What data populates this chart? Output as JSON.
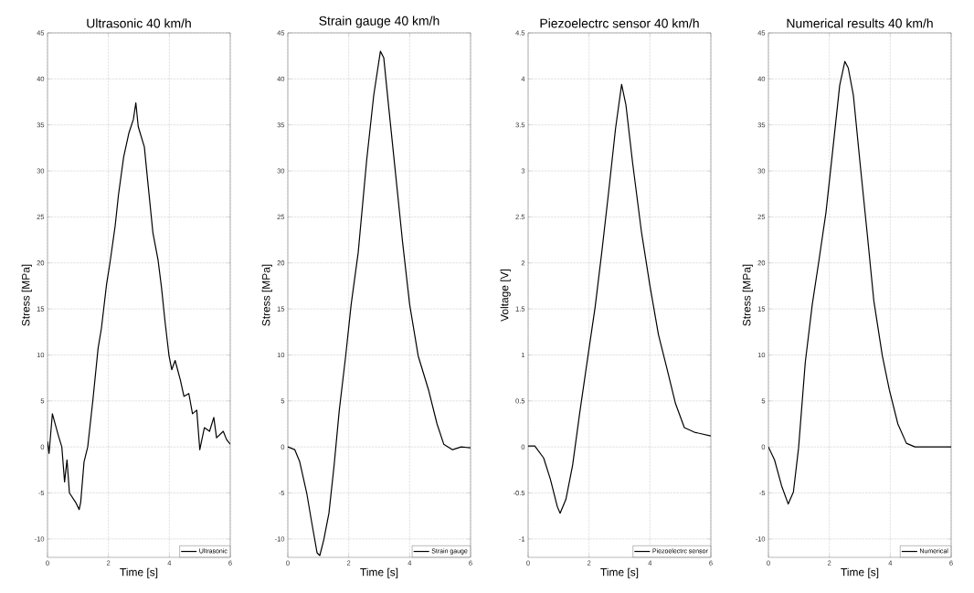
{
  "chart_data": [
    {
      "type": "line",
      "title": "Ultrasonic 40 km/h",
      "xlabel": "Time [s]",
      "ylabel": "Stress [MPa]",
      "xlim": [
        0,
        6
      ],
      "ylim": [
        -12,
        45
      ],
      "xticks": [
        0,
        2,
        4,
        6
      ],
      "yticks": [
        -10,
        -5,
        0,
        5,
        10,
        15,
        20,
        25,
        30,
        35,
        40,
        45
      ],
      "grid": true,
      "legend": "bottom right",
      "series": [
        {
          "name": "Ultrasonic",
          "color": "#000000",
          "x": [
            0,
            0.05,
            0.16,
            0.36,
            0.47,
            0.56,
            0.64,
            0.72,
            0.92,
            1.04,
            1.09,
            1.2,
            1.32,
            1.49,
            1.66,
            1.77,
            1.94,
            2.05,
            2.22,
            2.33,
            2.5,
            2.67,
            2.82,
            2.9,
            2.98,
            3.18,
            3.29,
            3.46,
            3.63,
            3.74,
            3.86,
            3.99,
            4.08,
            4.19,
            4.36,
            4.48,
            4.64,
            4.76,
            4.9,
            5.0,
            5.15,
            5.32,
            5.46,
            5.55,
            5.77,
            5.88,
            6.0
          ],
          "values": [
            0.6,
            -0.7,
            3.6,
            1.2,
            0,
            -3.8,
            -1.4,
            -5,
            -6,
            -6.8,
            -6,
            -1.6,
            0,
            5.1,
            10.7,
            12.9,
            17.7,
            20,
            24,
            27.4,
            31.5,
            34.1,
            35.6,
            37.4,
            34.8,
            32.6,
            28.9,
            23.3,
            20.3,
            17.4,
            13.6,
            9.9,
            8.4,
            9.4,
            7.3,
            5.5,
            5.8,
            3.6,
            4,
            -0.3,
            2.1,
            1.7,
            3.2,
            1,
            1.7,
            0.8,
            0.3
          ]
        }
      ]
    },
    {
      "type": "line",
      "title": "Strain gauge 40 km/h",
      "xlabel": "Time [s]",
      "ylabel": "Stress [MPa]",
      "xlim": [
        0,
        6
      ],
      "ylim": [
        -12,
        45
      ],
      "xticks": [
        0,
        2,
        4,
        6
      ],
      "yticks": [
        -10,
        -5,
        0,
        5,
        10,
        15,
        20,
        25,
        30,
        35,
        40,
        45
      ],
      "grid": true,
      "legend": "bottom right",
      "series": [
        {
          "name": "Strain gauge",
          "color": "#000000",
          "x": [
            0,
            0.23,
            0.39,
            0.62,
            0.79,
            0.96,
            1.05,
            1.18,
            1.35,
            1.52,
            1.69,
            1.9,
            2.08,
            2.31,
            2.59,
            2.82,
            3.04,
            3.15,
            3.32,
            3.55,
            3.77,
            4.0,
            4.28,
            4.62,
            4.9,
            5.12,
            5.41,
            5.69,
            6.0
          ],
          "values": [
            0,
            -0.3,
            -1.6,
            -5,
            -8.3,
            -11.5,
            -11.8,
            -10.1,
            -7.2,
            -2,
            4,
            9.9,
            15.5,
            21.1,
            31.2,
            38.2,
            43,
            42.3,
            36.7,
            29.3,
            22.2,
            15.5,
            9.9,
            6.2,
            2.5,
            0.3,
            -0.3,
            0,
            -0.1
          ]
        }
      ]
    },
    {
      "type": "line",
      "title": "Piezoelectrc sensor 40 km/h",
      "xlabel": "Time [s]",
      "ylabel": "Voltage [V]",
      "xlim": [
        0,
        6
      ],
      "ylim": [
        -1.2,
        4.5
      ],
      "xticks": [
        0,
        2,
        4,
        6
      ],
      "yticks": [
        -1,
        -0.5,
        0,
        0.5,
        1,
        1.5,
        2,
        2.5,
        3,
        3.5,
        4,
        4.5
      ],
      "grid": true,
      "legend": "bottom right",
      "series": [
        {
          "name": "Piezoelectrc sensor",
          "color": "#000000",
          "x": [
            0,
            0.22,
            0.51,
            0.73,
            0.96,
            1.05,
            1.24,
            1.46,
            1.69,
            1.97,
            2.2,
            2.42,
            2.65,
            2.87,
            3.07,
            3.21,
            3.43,
            3.72,
            4.0,
            4.28,
            4.56,
            4.84,
            5.13,
            5.46,
            6.0
          ],
          "values": [
            0.01,
            0.01,
            -0.12,
            -0.35,
            -0.65,
            -0.72,
            -0.57,
            -0.2,
            0.36,
            1.0,
            1.52,
            2.12,
            2.79,
            3.46,
            3.94,
            3.72,
            3.09,
            2.34,
            1.75,
            1.22,
            0.85,
            0.47,
            0.21,
            0.16,
            0.12
          ]
        }
      ]
    },
    {
      "type": "line",
      "title": "Numerical results 40 km/h",
      "xlabel": "Time [s]",
      "ylabel": "Stress [MPa]",
      "xlim": [
        0,
        6
      ],
      "ylim": [
        -12,
        45
      ],
      "xticks": [
        0,
        2,
        4,
        6
      ],
      "yticks": [
        -10,
        -5,
        0,
        5,
        10,
        15,
        20,
        25,
        30,
        35,
        40,
        45
      ],
      "grid": true,
      "legend": "bottom right",
      "series": [
        {
          "name": "Numerical",
          "color": "#000000",
          "x": [
            0,
            0.2,
            0.43,
            0.65,
            0.82,
            0.99,
            1.21,
            1.44,
            1.66,
            1.89,
            2.11,
            2.34,
            2.51,
            2.62,
            2.79,
            3.01,
            3.24,
            3.46,
            3.74,
            3.97,
            4.25,
            4.53,
            4.81,
            5.37,
            6.0
          ],
          "values": [
            0,
            -1.4,
            -4.2,
            -6.2,
            -4.9,
            -0.1,
            9.2,
            15.5,
            20.3,
            25.5,
            32.2,
            39.3,
            41.9,
            41.2,
            38.2,
            30.8,
            23.3,
            15.9,
            9.9,
            6.2,
            2.5,
            0.4,
            0,
            0,
            0
          ]
        }
      ]
    }
  ]
}
